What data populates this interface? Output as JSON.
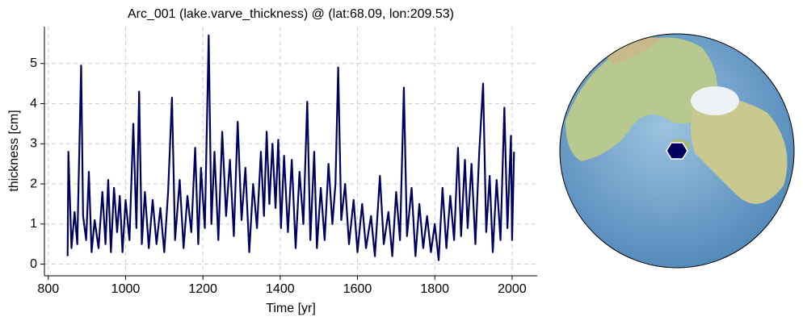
{
  "chart_data": {
    "type": "line",
    "title": "Arc_001 (lake.varve_thickness) @ (lat:68.09, lon:209.53)",
    "x_label": "Time [yr]",
    "y_label": "thickness [cm]",
    "xlim": [
      790,
      2065
    ],
    "ylim": [
      -0.29,
      5.92
    ],
    "xticks": [
      800,
      1000,
      1200,
      1400,
      1600,
      1800,
      2000
    ],
    "yticks": [
      0,
      1,
      2,
      3,
      4,
      5
    ],
    "grid": true,
    "series": [
      {
        "color": "#000060",
        "x": [
          850,
          852,
          860,
          868,
          875,
          885,
          890,
          898,
          905,
          912,
          920,
          930,
          940,
          948,
          955,
          962,
          970,
          978,
          985,
          992,
          1000,
          1010,
          1020,
          1028,
          1035,
          1042,
          1050,
          1060,
          1070,
          1080,
          1090,
          1100,
          1110,
          1120,
          1128,
          1140,
          1150,
          1160,
          1170,
          1180,
          1188,
          1195,
          1205,
          1215,
          1222,
          1230,
          1240,
          1250,
          1260,
          1270,
          1280,
          1290,
          1300,
          1310,
          1320,
          1330,
          1340,
          1350,
          1358,
          1365,
          1372,
          1380,
          1388,
          1395,
          1402,
          1410,
          1420,
          1430,
          1440,
          1450,
          1460,
          1470,
          1478,
          1488,
          1495,
          1505,
          1515,
          1525,
          1535,
          1543,
          1550,
          1558,
          1568,
          1578,
          1590,
          1600,
          1612,
          1622,
          1635,
          1645,
          1658,
          1668,
          1680,
          1690,
          1700,
          1710,
          1720,
          1728,
          1740,
          1750,
          1760,
          1770,
          1780,
          1790,
          1800,
          1810,
          1820,
          1830,
          1840,
          1850,
          1860,
          1868,
          1878,
          1885,
          1895,
          1905,
          1915,
          1925,
          1933,
          1942,
          1950,
          1960,
          1970,
          1980,
          1988,
          1997,
          2000,
          2005
        ],
        "values": [
          0.2,
          2.8,
          0.4,
          1.3,
          0.5,
          4.95,
          1.2,
          0.6,
          2.3,
          0.3,
          1.1,
          0.4,
          1.8,
          0.5,
          2.1,
          0.3,
          1.9,
          0.8,
          1.7,
          0.3,
          1.6,
          0.6,
          3.5,
          0.9,
          4.3,
          0.5,
          1.8,
          0.4,
          1.6,
          0.5,
          1.4,
          0.3,
          1.8,
          4.15,
          0.6,
          2.1,
          0.4,
          1.7,
          0.8,
          2.9,
          0.5,
          2.4,
          0.9,
          5.7,
          1.0,
          2.8,
          0.6,
          3.3,
          1.2,
          2.6,
          0.7,
          3.55,
          1.1,
          2.4,
          0.3,
          2.0,
          0.9,
          2.8,
          1.2,
          3.3,
          1.5,
          3.0,
          1.4,
          3.1,
          0.9,
          2.7,
          0.8,
          2.6,
          0.4,
          2.3,
          1.0,
          4.05,
          0.6,
          2.8,
          0.4,
          1.9,
          0.6,
          2.5,
          1.0,
          2.0,
          4.9,
          1.1,
          2.0,
          0.5,
          1.6,
          0.3,
          1.5,
          0.4,
          1.2,
          0.2,
          2.2,
          0.5,
          1.3,
          0.2,
          1.8,
          0.6,
          4.4,
          0.7,
          1.9,
          0.2,
          1.5,
          0.4,
          1.2,
          0.3,
          1.0,
          0.1,
          1.9,
          0.4,
          1.7,
          0.6,
          2.9,
          0.7,
          2.6,
          0.9,
          2.5,
          0.5,
          2.8,
          4.5,
          0.8,
          2.2,
          0.3,
          2.1,
          0.6,
          3.9,
          0.9,
          3.2,
          0.6,
          2.8
        ]
      }
    ]
  }
}
